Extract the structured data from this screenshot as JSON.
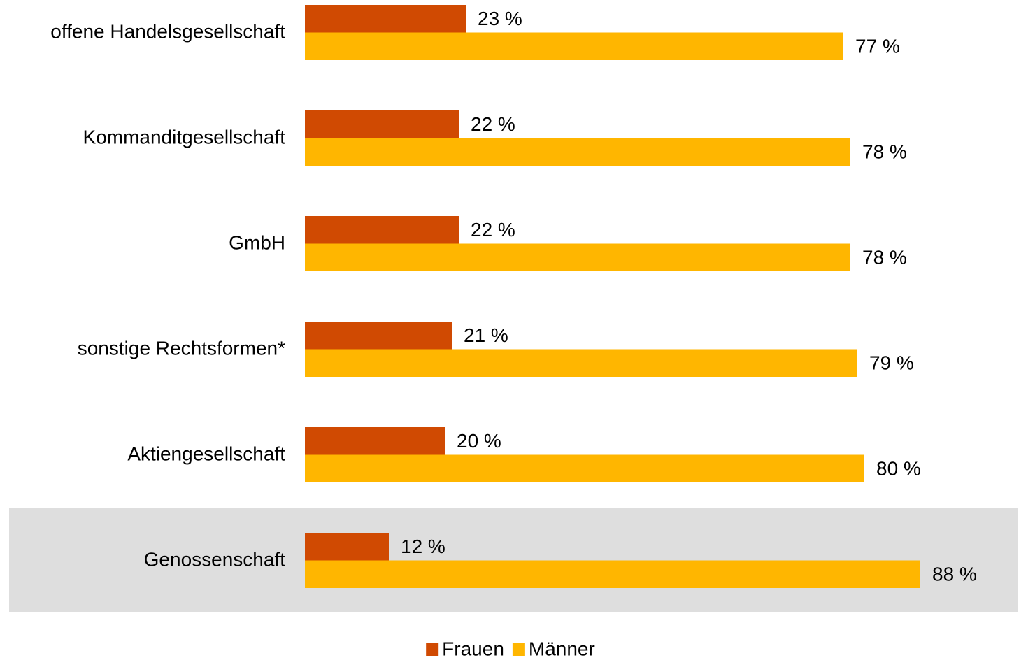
{
  "chart_data": {
    "type": "hbar",
    "categories": [
      "offene Handelsgesellschaft",
      "Kommanditgesellschaft",
      "GmbH",
      "sonstige Rechtsformen*",
      "Aktiengesellschaft",
      "Genossenschaft"
    ],
    "series": [
      {
        "name": "Frauen",
        "color": "#d04a02",
        "values": [
          23,
          22,
          22,
          21,
          20,
          12
        ],
        "value_labels": [
          "23 %",
          "22 %",
          "22 %",
          "21 %",
          "20 %",
          "12 %"
        ]
      },
      {
        "name": "Männer",
        "color": "#ffb600",
        "values": [
          77,
          78,
          78,
          79,
          80,
          88
        ],
        "value_labels": [
          "77 %",
          "78 %",
          "78 %",
          "79 %",
          "80 %",
          "88 %"
        ]
      }
    ],
    "xlim": [
      0,
      100
    ],
    "highlight_index": 5,
    "highlight_color": "#dedede",
    "legend": "bottom"
  }
}
